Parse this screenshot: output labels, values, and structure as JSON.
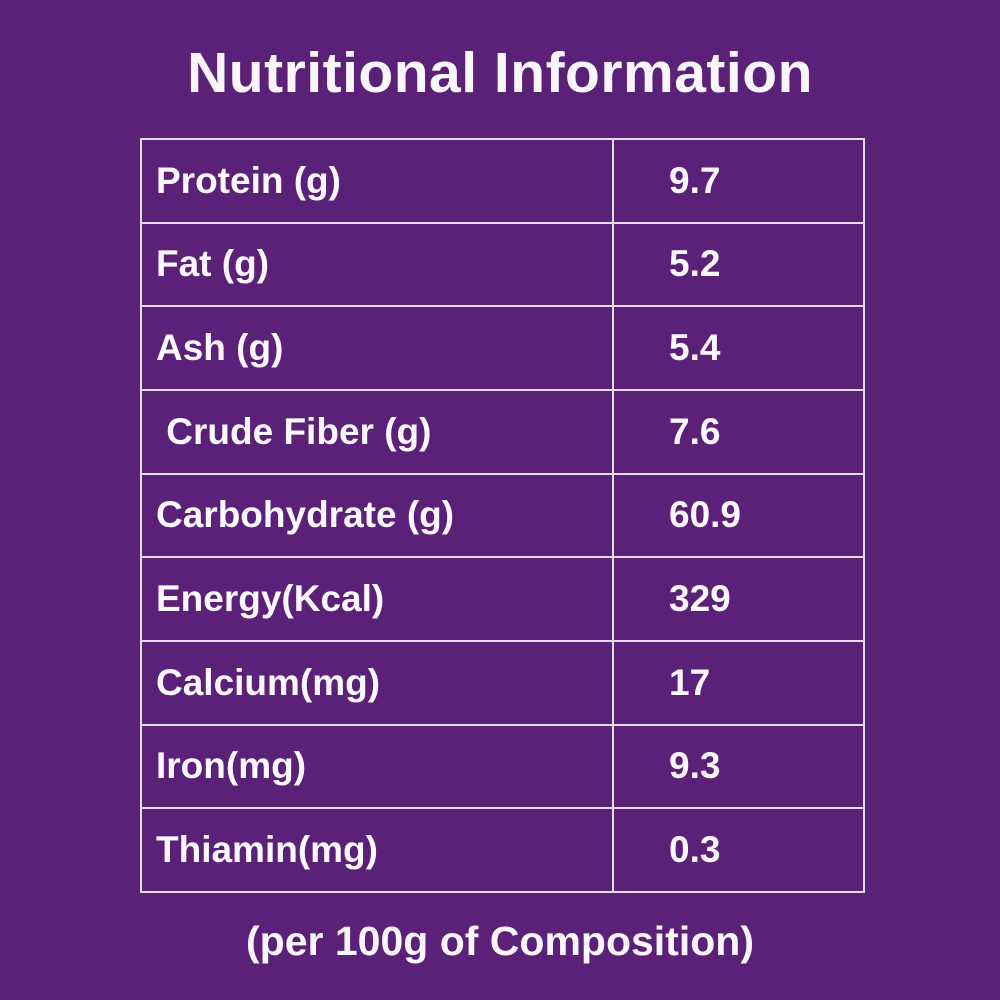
{
  "page": {
    "background_color": "#5b2078",
    "text_color": "#faf7fd",
    "border_color": "#e4dcee"
  },
  "title": "Nutritional Information",
  "table": {
    "rows": [
      {
        "label": "Protein (g)",
        "value": "9.7"
      },
      {
        "label": "Fat (g)",
        "value": "5.2"
      },
      {
        "label": "Ash (g)",
        "value": "5.4"
      },
      {
        "label": " Crude Fiber (g)",
        "value": "7.6"
      },
      {
        "label": "Carbohydrate (g)",
        "value": "60.9"
      },
      {
        "label": "Energy(Kcal)",
        "value": "329"
      },
      {
        "label": "Calcium(mg)",
        "value": "17"
      },
      {
        "label": "Iron(mg)",
        "value": "9.3"
      },
      {
        "label": "Thiamin(mg)",
        "value": "0.3"
      }
    ]
  },
  "footer": "(per 100g of Composition)"
}
